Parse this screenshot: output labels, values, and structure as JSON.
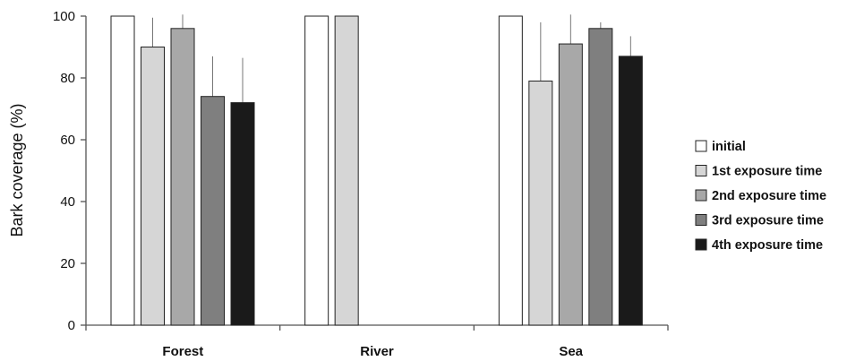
{
  "chart_data": {
    "type": "bar",
    "categories": [
      "Forest",
      "River",
      "Sea"
    ],
    "ylabel": "Bark coverage (%)",
    "xlabel": "",
    "ylim": [
      0,
      100
    ],
    "yticks": [
      0,
      20,
      40,
      60,
      80,
      100
    ],
    "grid": false,
    "legend_position": "right",
    "series": [
      {
        "name": "initial",
        "color": "#ffffff",
        "values": [
          100,
          100,
          100
        ],
        "errors": [
          0,
          0,
          0
        ]
      },
      {
        "name": "1st exposure time",
        "color": "#d6d6d6",
        "values": [
          90,
          100,
          79
        ],
        "errors": [
          9.5,
          0,
          19
        ]
      },
      {
        "name": "2nd exposure time",
        "color": "#a8a8a8",
        "values": [
          96,
          null,
          91
        ],
        "errors": [
          4.5,
          null,
          9.5
        ]
      },
      {
        "name": "3rd exposure time",
        "color": "#7f7f7f",
        "values": [
          74,
          null,
          96
        ],
        "errors": [
          13,
          null,
          2
        ]
      },
      {
        "name": "4th exposure time",
        "color": "#1a1a1a",
        "values": [
          72,
          null,
          87
        ],
        "errors": [
          14.5,
          null,
          6.5
        ]
      }
    ]
  }
}
